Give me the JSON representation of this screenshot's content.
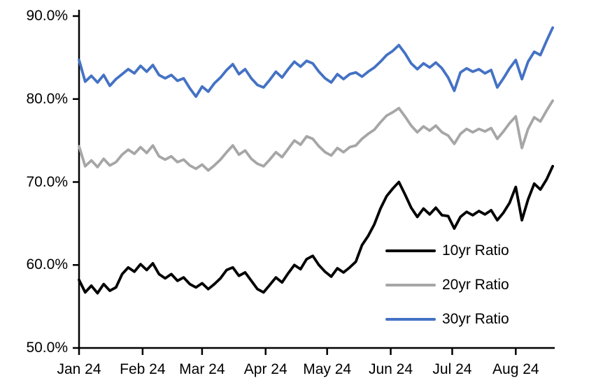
{
  "page": {
    "background": "#FFFFFF"
  },
  "chart_data": {
    "type": "line",
    "grid": "off",
    "axis_color": "#000000",
    "legend": {
      "position": "inside-lower-right"
    },
    "x_axis": {
      "tick_labels": [
        "Jan 24",
        "Feb 24",
        "Mar 24",
        "Apr 24",
        "May 24",
        "Jun 24",
        "Jul 24",
        "Aug 24"
      ],
      "tick_days": [
        0,
        31,
        60,
        91,
        121,
        152,
        182,
        213
      ],
      "range_days": [
        0,
        232
      ]
    },
    "y_axis": {
      "tick_labels": [
        "90.0%",
        "80.0%",
        "70.0%",
        "60.0%",
        "50.0%"
      ],
      "tick_values": [
        90,
        80,
        70,
        60,
        50
      ],
      "min": 50,
      "max": 90,
      "unit": "%"
    },
    "x_days": [
      0,
      3,
      6,
      9,
      12,
      15,
      18,
      21,
      24,
      27,
      30,
      33,
      36,
      39,
      42,
      45,
      48,
      51,
      54,
      57,
      60,
      63,
      66,
      69,
      72,
      75,
      78,
      81,
      84,
      87,
      90,
      93,
      96,
      99,
      102,
      105,
      108,
      111,
      114,
      117,
      120,
      123,
      126,
      129,
      132,
      135,
      138,
      141,
      144,
      147,
      150,
      153,
      156,
      159,
      162,
      165,
      168,
      171,
      174,
      177,
      180,
      183,
      186,
      189,
      192,
      195,
      198,
      201,
      204,
      207,
      210,
      213,
      216,
      219,
      222,
      225,
      228,
      231
    ],
    "series": [
      {
        "name": "10yr Ratio",
        "color": "#000000",
        "values": [
          58.2,
          56.7,
          57.5,
          56.6,
          57.7,
          56.9,
          57.3,
          58.9,
          59.7,
          59.2,
          60.1,
          59.4,
          60.2,
          58.9,
          58.4,
          58.9,
          58.1,
          58.5,
          57.7,
          57.3,
          57.8,
          57.1,
          57.7,
          58.4,
          59.4,
          59.7,
          58.7,
          59.1,
          58.1,
          57.1,
          56.7,
          57.6,
          58.5,
          57.9,
          59.0,
          60.0,
          59.5,
          60.7,
          61.1,
          60.0,
          59.2,
          58.6,
          59.6,
          59.1,
          59.7,
          60.4,
          62.4,
          63.5,
          64.9,
          66.8,
          68.3,
          69.2,
          70.0,
          68.5,
          66.9,
          65.8,
          66.8,
          66.1,
          66.9,
          66.0,
          65.9,
          64.4,
          65.8,
          66.4,
          66.0,
          66.5,
          66.1,
          66.6,
          65.4,
          66.3,
          67.5,
          69.4,
          65.4,
          67.9,
          69.8,
          69.1,
          70.3,
          71.9
        ]
      },
      {
        "name": "20yr Ratio",
        "color": "#A6A6A6",
        "values": [
          74.3,
          71.9,
          72.6,
          71.8,
          72.8,
          72.0,
          72.4,
          73.3,
          73.9,
          73.4,
          74.2,
          73.5,
          74.4,
          73.1,
          72.7,
          73.1,
          72.4,
          72.7,
          72.0,
          71.6,
          72.1,
          71.4,
          72.0,
          72.7,
          73.6,
          74.4,
          73.3,
          73.8,
          72.8,
          72.2,
          71.9,
          72.7,
          73.6,
          73.0,
          74.0,
          75.0,
          74.5,
          75.5,
          75.2,
          74.3,
          73.6,
          73.2,
          74.1,
          73.6,
          74.2,
          74.4,
          75.2,
          75.8,
          76.3,
          77.2,
          78.0,
          78.4,
          78.9,
          77.9,
          76.8,
          76.0,
          76.7,
          76.2,
          76.8,
          76.0,
          75.6,
          74.6,
          75.8,
          76.4,
          76.0,
          76.4,
          76.1,
          76.5,
          75.2,
          76.1,
          77.1,
          77.9,
          74.1,
          76.4,
          77.8,
          77.3,
          78.6,
          79.8
        ]
      },
      {
        "name": "30yr Ratio",
        "color": "#4472C4",
        "values": [
          84.7,
          82.1,
          82.8,
          82.0,
          82.9,
          81.6,
          82.4,
          83.0,
          83.6,
          83.1,
          84.0,
          83.3,
          84.1,
          82.9,
          82.5,
          82.9,
          82.2,
          82.5,
          81.3,
          80.3,
          81.5,
          80.9,
          81.9,
          82.6,
          83.5,
          84.2,
          83.0,
          83.6,
          82.5,
          81.7,
          81.4,
          82.3,
          83.3,
          82.6,
          83.6,
          84.5,
          83.9,
          84.6,
          84.3,
          83.3,
          82.5,
          82.0,
          83.0,
          82.4,
          83.0,
          83.2,
          82.7,
          83.3,
          83.8,
          84.5,
          85.3,
          85.8,
          86.5,
          85.5,
          84.3,
          83.6,
          84.3,
          83.8,
          84.4,
          83.7,
          82.6,
          81.0,
          83.2,
          83.7,
          83.3,
          83.6,
          83.1,
          83.5,
          81.4,
          82.5,
          83.7,
          84.7,
          82.4,
          84.5,
          85.7,
          85.3,
          87.0,
          88.6
        ]
      }
    ]
  }
}
